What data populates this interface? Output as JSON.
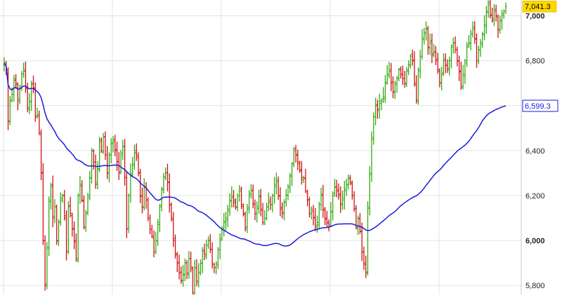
{
  "chart_data": {
    "type": "ohlc",
    "title": "",
    "xlabel": "",
    "ylabel": "",
    "ylim": [
      5760,
      7070
    ],
    "y_ticks": [
      {
        "value": 5800,
        "label": "5,800",
        "bold": false
      },
      {
        "value": 6000,
        "label": "6,000",
        "bold": true
      },
      {
        "value": 6200,
        "label": "6,200",
        "bold": false
      },
      {
        "value": 6400,
        "label": "6,400",
        "bold": false
      },
      {
        "value": 6600,
        "label": "6,600",
        "bold": false
      },
      {
        "value": 6800,
        "label": "6,800",
        "bold": false
      },
      {
        "value": 7000,
        "label": "7,000",
        "bold": true
      }
    ],
    "grid": true,
    "price_badge": {
      "value": 7041.3,
      "label": "7,041.3",
      "color": "#ffd700"
    },
    "ma_badge": {
      "value": 6599.3,
      "label": "6,599.3",
      "color": "#1a1adb"
    },
    "colors": {
      "up": "#33aa11",
      "down": "#d01010",
      "ma": "#1a1adb",
      "grid": "#e3e3e3",
      "axis": "#c8c8c8"
    },
    "closes": [
      6790,
      6760,
      6530,
      6620,
      6650,
      6720,
      6700,
      6620,
      6680,
      6740,
      6760,
      6680,
      6590,
      6620,
      6700,
      6680,
      6550,
      6560,
      6480,
      6300,
      6000,
      5800,
      5970,
      6180,
      6240,
      6100,
      6150,
      6000,
      6080,
      6180,
      6200,
      6100,
      5950,
      6150,
      6120,
      6050,
      6000,
      5920,
      6200,
      6250,
      6180,
      6060,
      6120,
      6200,
      6280,
      6400,
      6350,
      6250,
      6320,
      6440,
      6400,
      6460,
      6380,
      6300,
      6380,
      6430,
      6440,
      6400,
      6350,
      6300,
      6380,
      6420,
      6280,
      6050,
      6200,
      6300,
      6340,
      6400,
      6380,
      6300,
      6200,
      6150,
      6240,
      6180,
      6100,
      6050,
      6020,
      5950,
      6000,
      6080,
      6150,
      6230,
      6280,
      6300,
      6260,
      6160,
      6100,
      6000,
      5940,
      5900,
      5860,
      5820,
      5850,
      5900,
      5850,
      5920,
      5880,
      5760,
      5880,
      5820,
      5860,
      5900,
      5950,
      5940,
      5980,
      6000,
      5960,
      5900,
      5880,
      5900,
      5960,
      6000,
      6050,
      6080,
      6100,
      6140,
      6180,
      6200,
      6180,
      6150,
      6200,
      6220,
      6160,
      6120,
      6060,
      6140,
      6200,
      6220,
      6160,
      6120,
      6150,
      6200,
      6140,
      6080,
      6100,
      6150,
      6180,
      6160,
      6200,
      6250,
      6260,
      6200,
      6140,
      6120,
      6170,
      6200,
      6240,
      6290,
      6340,
      6400,
      6380,
      6350,
      6310,
      6280,
      6280,
      6220,
      6180,
      6120,
      6140,
      6100,
      6060,
      6080,
      6160,
      6200,
      6140,
      6100,
      6080,
      6060,
      6130,
      6200,
      6240,
      6220,
      6200,
      6160,
      6190,
      6230,
      6250,
      6280,
      6260,
      6200,
      6140,
      6060,
      6100,
      6040,
      5950,
      5900,
      5860,
      6150,
      6300,
      6450,
      6550,
      6600,
      6580,
      6620,
      6620,
      6640,
      6700,
      6740,
      6760,
      6700,
      6660,
      6700,
      6720,
      6760,
      6740,
      6720,
      6700,
      6760,
      6780,
      6820,
      6800,
      6700,
      6620,
      6760,
      6820,
      6900,
      6920,
      6940,
      6860,
      6880,
      6830,
      6840,
      6800,
      6760,
      6700,
      6740,
      6800,
      6780,
      6760,
      6800,
      6860,
      6880,
      6850,
      6800,
      6750,
      6680,
      6740,
      6800,
      6860,
      6880,
      6920,
      6950,
      6900,
      6800,
      6850,
      6880,
      6920,
      6960,
      7020,
      7050,
      7000,
      6980,
      7020,
      7000,
      6940,
      6980,
      7000,
      7020,
      7041
    ]
  }
}
